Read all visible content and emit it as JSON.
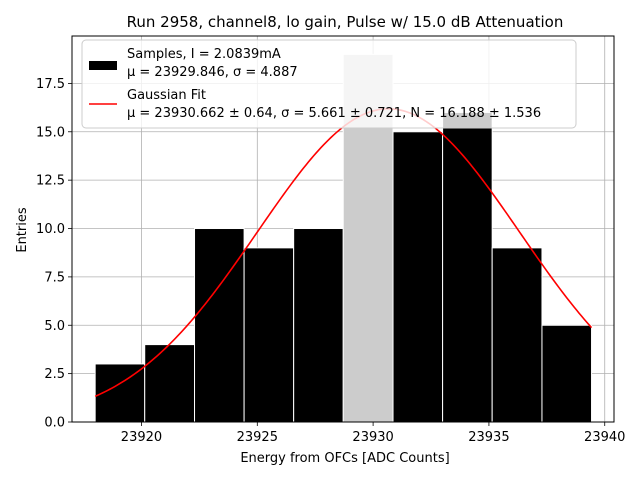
{
  "chart_data": {
    "type": "bar",
    "title": "Run 2958, channel8, lo gain, Pulse w/ 15.0 dB Attenuation",
    "xlabel": "Energy from OFCs [ADC Counts]",
    "ylabel": "Entries",
    "xlim": [
      23917.0,
      23940.4
    ],
    "ylim": [
      0,
      19.95
    ],
    "grid": true,
    "legend_placement": "top-left",
    "bin_edges": [
      23918.0,
      23920.14,
      23922.29,
      23924.43,
      23926.57,
      23928.71,
      23930.86,
      23933.0,
      23935.14,
      23937.29,
      23939.43
    ],
    "values": [
      3,
      4,
      10,
      9,
      10,
      19,
      15,
      16,
      9,
      5
    ],
    "bar_color": "#000000",
    "highlight_color": "#cccccc",
    "x_ticks": [
      {
        "value": 23920,
        "label": "23920"
      },
      {
        "value": 23925,
        "label": "23925"
      },
      {
        "value": 23930,
        "label": "23930"
      },
      {
        "value": 23935,
        "label": "23935"
      },
      {
        "value": 23940,
        "label": "23940"
      }
    ],
    "y_ticks": [
      {
        "value": 0.0,
        "label": "0.0"
      },
      {
        "value": 2.5,
        "label": "2.5"
      },
      {
        "value": 5.0,
        "label": "5.0"
      },
      {
        "value": 7.5,
        "label": "7.5"
      },
      {
        "value": 10.0,
        "label": "10.0"
      },
      {
        "value": 12.5,
        "label": "12.5"
      },
      {
        "value": 15.0,
        "label": "15.0"
      },
      {
        "value": 17.5,
        "label": "17.5"
      }
    ],
    "fit": {
      "mu": 23930.662,
      "sigma": 5.661,
      "N": 16.188,
      "x_range": [
        23918.0,
        23939.43
      ],
      "color": "#ff0000"
    },
    "legend": [
      {
        "kind": "patch",
        "color": "#000000",
        "line1": "Samples, I = 2.0839mA",
        "line2": "μ = 23929.846, σ = 4.887"
      },
      {
        "kind": "line",
        "color": "#ff0000",
        "line1": "Gaussian Fit",
        "line2": "μ = 23930.662 ± 0.64, σ = 5.661 ± 0.721, N = 16.188 ± 1.536"
      }
    ]
  }
}
